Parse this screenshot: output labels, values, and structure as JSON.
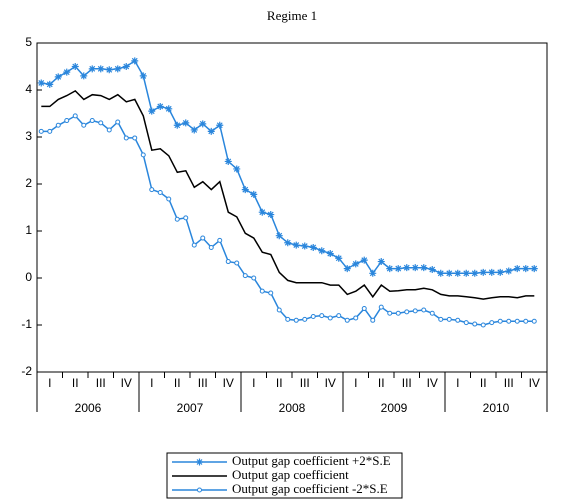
{
  "chart_data": {
    "type": "line",
    "title": "Regime 1",
    "quarter_labels": [
      "I",
      "II",
      "III",
      "IV",
      "I",
      "II",
      "III",
      "IV",
      "I",
      "II",
      "III",
      "IV",
      "I",
      "II",
      "III",
      "IV",
      "I",
      "II",
      "III",
      "IV"
    ],
    "year_labels": [
      "2006",
      "2007",
      "2008",
      "2009",
      "2010"
    ],
    "ylim": [
      -2,
      5
    ],
    "yticks": [
      -2,
      -1,
      0,
      1,
      2,
      3,
      4,
      5
    ],
    "legend": "bottom",
    "series": [
      {
        "name": "Output gap coefficient +2*S.E",
        "color": "#2a86dc",
        "marker": "star",
        "values": [
          4.15,
          4.12,
          4.28,
          4.38,
          4.5,
          4.3,
          4.45,
          4.45,
          4.43,
          4.45,
          4.5,
          4.62,
          4.3,
          3.55,
          3.65,
          3.6,
          3.25,
          3.3,
          3.15,
          3.28,
          3.12,
          3.25,
          2.48,
          2.32,
          1.88,
          1.78,
          1.4,
          1.35,
          0.9,
          0.75,
          0.7,
          0.68,
          0.65,
          0.58,
          0.52,
          0.42,
          0.2,
          0.3,
          0.38,
          0.1,
          0.35,
          0.2,
          0.2,
          0.22,
          0.22,
          0.22,
          0.18,
          0.1,
          0.1,
          0.1,
          0.1,
          0.1,
          0.12,
          0.12,
          0.12,
          0.15,
          0.2,
          0.2,
          0.2
        ]
      },
      {
        "name": "Output gap coefficient",
        "color": "#000000",
        "marker": "none",
        "values": [
          3.65,
          3.65,
          3.8,
          3.88,
          3.98,
          3.8,
          3.9,
          3.88,
          3.8,
          3.9,
          3.75,
          3.8,
          3.45,
          2.72,
          2.75,
          2.6,
          2.25,
          2.28,
          1.93,
          2.05,
          1.88,
          2.05,
          1.4,
          1.3,
          0.95,
          0.85,
          0.55,
          0.5,
          0.12,
          -0.05,
          -0.1,
          -0.1,
          -0.1,
          -0.1,
          -0.15,
          -0.15,
          -0.35,
          -0.28,
          -0.15,
          -0.4,
          -0.15,
          -0.28,
          -0.27,
          -0.25,
          -0.25,
          -0.22,
          -0.25,
          -0.35,
          -0.38,
          -0.38,
          -0.4,
          -0.42,
          -0.45,
          -0.42,
          -0.4,
          -0.4,
          -0.42,
          -0.38,
          -0.38
        ]
      },
      {
        "name": "Output gap coefficient -2*S.E",
        "color": "#2a86dc",
        "marker": "circle",
        "values": [
          3.12,
          3.12,
          3.25,
          3.35,
          3.45,
          3.25,
          3.35,
          3.3,
          3.15,
          3.32,
          2.98,
          2.98,
          2.62,
          1.88,
          1.82,
          1.68,
          1.25,
          1.28,
          0.7,
          0.85,
          0.65,
          0.8,
          0.35,
          0.32,
          0.05,
          0.0,
          -0.28,
          -0.32,
          -0.68,
          -0.88,
          -0.9,
          -0.88,
          -0.82,
          -0.8,
          -0.85,
          -0.8,
          -0.9,
          -0.85,
          -0.65,
          -0.9,
          -0.62,
          -0.75,
          -0.75,
          -0.72,
          -0.7,
          -0.68,
          -0.75,
          -0.88,
          -0.88,
          -0.9,
          -0.95,
          -0.98,
          -1.0,
          -0.95,
          -0.92,
          -0.92,
          -0.92,
          -0.92,
          -0.92
        ]
      }
    ]
  }
}
